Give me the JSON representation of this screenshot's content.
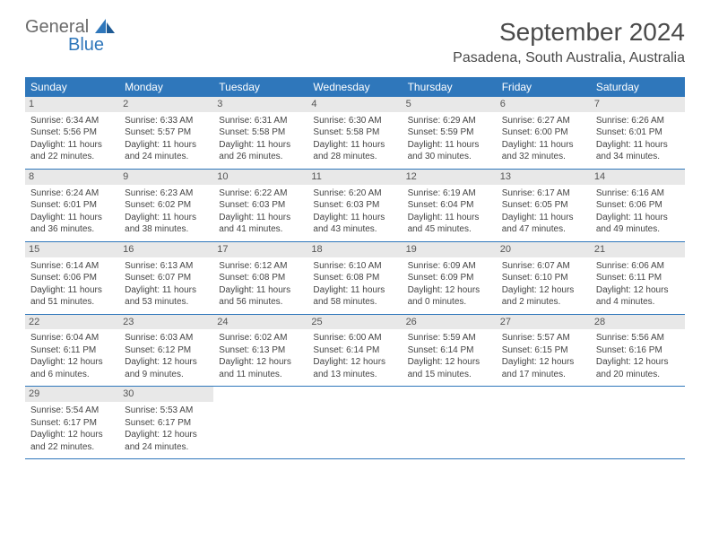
{
  "logo": {
    "general": "General",
    "blue": "Blue"
  },
  "title": "September 2024",
  "location": "Pasadena, South Australia, Australia",
  "colors": {
    "header_bg": "#2f77bb",
    "header_text": "#ffffff",
    "daynum_bg": "#e8e8e8",
    "border": "#2f77bb",
    "logo_gray": "#6a6a6a",
    "logo_blue": "#2f77bb"
  },
  "weekdays": [
    "Sunday",
    "Monday",
    "Tuesday",
    "Wednesday",
    "Thursday",
    "Friday",
    "Saturday"
  ],
  "weeks": [
    [
      {
        "n": "1",
        "sr": "Sunrise: 6:34 AM",
        "ss": "Sunset: 5:56 PM",
        "d1": "Daylight: 11 hours",
        "d2": "and 22 minutes."
      },
      {
        "n": "2",
        "sr": "Sunrise: 6:33 AM",
        "ss": "Sunset: 5:57 PM",
        "d1": "Daylight: 11 hours",
        "d2": "and 24 minutes."
      },
      {
        "n": "3",
        "sr": "Sunrise: 6:31 AM",
        "ss": "Sunset: 5:58 PM",
        "d1": "Daylight: 11 hours",
        "d2": "and 26 minutes."
      },
      {
        "n": "4",
        "sr": "Sunrise: 6:30 AM",
        "ss": "Sunset: 5:58 PM",
        "d1": "Daylight: 11 hours",
        "d2": "and 28 minutes."
      },
      {
        "n": "5",
        "sr": "Sunrise: 6:29 AM",
        "ss": "Sunset: 5:59 PM",
        "d1": "Daylight: 11 hours",
        "d2": "and 30 minutes."
      },
      {
        "n": "6",
        "sr": "Sunrise: 6:27 AM",
        "ss": "Sunset: 6:00 PM",
        "d1": "Daylight: 11 hours",
        "d2": "and 32 minutes."
      },
      {
        "n": "7",
        "sr": "Sunrise: 6:26 AM",
        "ss": "Sunset: 6:01 PM",
        "d1": "Daylight: 11 hours",
        "d2": "and 34 minutes."
      }
    ],
    [
      {
        "n": "8",
        "sr": "Sunrise: 6:24 AM",
        "ss": "Sunset: 6:01 PM",
        "d1": "Daylight: 11 hours",
        "d2": "and 36 minutes."
      },
      {
        "n": "9",
        "sr": "Sunrise: 6:23 AM",
        "ss": "Sunset: 6:02 PM",
        "d1": "Daylight: 11 hours",
        "d2": "and 38 minutes."
      },
      {
        "n": "10",
        "sr": "Sunrise: 6:22 AM",
        "ss": "Sunset: 6:03 PM",
        "d1": "Daylight: 11 hours",
        "d2": "and 41 minutes."
      },
      {
        "n": "11",
        "sr": "Sunrise: 6:20 AM",
        "ss": "Sunset: 6:03 PM",
        "d1": "Daylight: 11 hours",
        "d2": "and 43 minutes."
      },
      {
        "n": "12",
        "sr": "Sunrise: 6:19 AM",
        "ss": "Sunset: 6:04 PM",
        "d1": "Daylight: 11 hours",
        "d2": "and 45 minutes."
      },
      {
        "n": "13",
        "sr": "Sunrise: 6:17 AM",
        "ss": "Sunset: 6:05 PM",
        "d1": "Daylight: 11 hours",
        "d2": "and 47 minutes."
      },
      {
        "n": "14",
        "sr": "Sunrise: 6:16 AM",
        "ss": "Sunset: 6:06 PM",
        "d1": "Daylight: 11 hours",
        "d2": "and 49 minutes."
      }
    ],
    [
      {
        "n": "15",
        "sr": "Sunrise: 6:14 AM",
        "ss": "Sunset: 6:06 PM",
        "d1": "Daylight: 11 hours",
        "d2": "and 51 minutes."
      },
      {
        "n": "16",
        "sr": "Sunrise: 6:13 AM",
        "ss": "Sunset: 6:07 PM",
        "d1": "Daylight: 11 hours",
        "d2": "and 53 minutes."
      },
      {
        "n": "17",
        "sr": "Sunrise: 6:12 AM",
        "ss": "Sunset: 6:08 PM",
        "d1": "Daylight: 11 hours",
        "d2": "and 56 minutes."
      },
      {
        "n": "18",
        "sr": "Sunrise: 6:10 AM",
        "ss": "Sunset: 6:08 PM",
        "d1": "Daylight: 11 hours",
        "d2": "and 58 minutes."
      },
      {
        "n": "19",
        "sr": "Sunrise: 6:09 AM",
        "ss": "Sunset: 6:09 PM",
        "d1": "Daylight: 12 hours",
        "d2": "and 0 minutes."
      },
      {
        "n": "20",
        "sr": "Sunrise: 6:07 AM",
        "ss": "Sunset: 6:10 PM",
        "d1": "Daylight: 12 hours",
        "d2": "and 2 minutes."
      },
      {
        "n": "21",
        "sr": "Sunrise: 6:06 AM",
        "ss": "Sunset: 6:11 PM",
        "d1": "Daylight: 12 hours",
        "d2": "and 4 minutes."
      }
    ],
    [
      {
        "n": "22",
        "sr": "Sunrise: 6:04 AM",
        "ss": "Sunset: 6:11 PM",
        "d1": "Daylight: 12 hours",
        "d2": "and 6 minutes."
      },
      {
        "n": "23",
        "sr": "Sunrise: 6:03 AM",
        "ss": "Sunset: 6:12 PM",
        "d1": "Daylight: 12 hours",
        "d2": "and 9 minutes."
      },
      {
        "n": "24",
        "sr": "Sunrise: 6:02 AM",
        "ss": "Sunset: 6:13 PM",
        "d1": "Daylight: 12 hours",
        "d2": "and 11 minutes."
      },
      {
        "n": "25",
        "sr": "Sunrise: 6:00 AM",
        "ss": "Sunset: 6:14 PM",
        "d1": "Daylight: 12 hours",
        "d2": "and 13 minutes."
      },
      {
        "n": "26",
        "sr": "Sunrise: 5:59 AM",
        "ss": "Sunset: 6:14 PM",
        "d1": "Daylight: 12 hours",
        "d2": "and 15 minutes."
      },
      {
        "n": "27",
        "sr": "Sunrise: 5:57 AM",
        "ss": "Sunset: 6:15 PM",
        "d1": "Daylight: 12 hours",
        "d2": "and 17 minutes."
      },
      {
        "n": "28",
        "sr": "Sunrise: 5:56 AM",
        "ss": "Sunset: 6:16 PM",
        "d1": "Daylight: 12 hours",
        "d2": "and 20 minutes."
      }
    ],
    [
      {
        "n": "29",
        "sr": "Sunrise: 5:54 AM",
        "ss": "Sunset: 6:17 PM",
        "d1": "Daylight: 12 hours",
        "d2": "and 22 minutes."
      },
      {
        "n": "30",
        "sr": "Sunrise: 5:53 AM",
        "ss": "Sunset: 6:17 PM",
        "d1": "Daylight: 12 hours",
        "d2": "and 24 minutes."
      },
      null,
      null,
      null,
      null,
      null
    ]
  ]
}
